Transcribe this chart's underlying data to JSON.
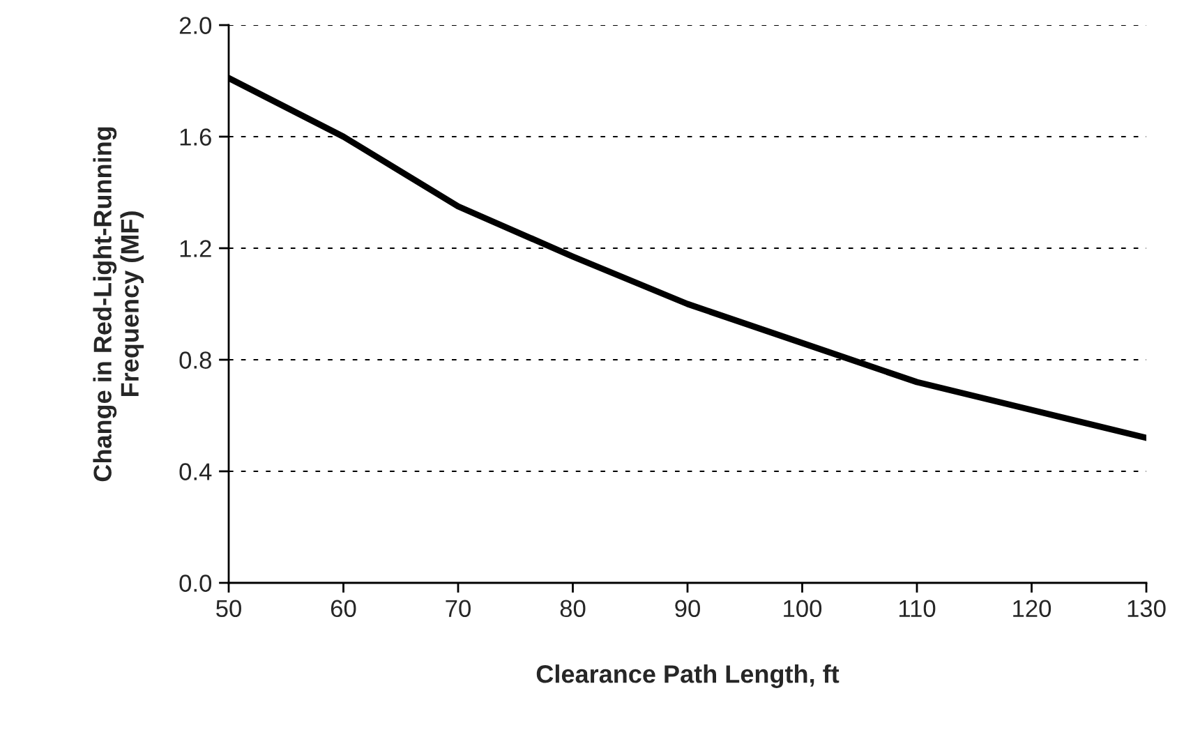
{
  "chart_data": {
    "type": "line",
    "xlabel": "Clearance Path Length, ft",
    "ylabel": "Change in Red-Light-Running\nFrequency (MF)",
    "x": [
      50,
      60,
      70,
      80,
      90,
      100,
      110,
      120,
      130
    ],
    "series": [
      {
        "color": "#000000",
        "values": [
          1.81,
          1.6,
          1.35,
          1.17,
          1.0,
          0.86,
          0.72,
          0.62,
          0.52
        ]
      }
    ],
    "xlim": [
      50,
      130
    ],
    "xticks": [
      50,
      60,
      70,
      80,
      90,
      100,
      110,
      120,
      130
    ],
    "ylim": [
      0,
      2.0
    ],
    "yticks": [
      {
        "value": 0,
        "label": "0.0"
      },
      {
        "value": 0.4,
        "label": "0.4"
      },
      {
        "value": 0.8,
        "label": "0.8"
      },
      {
        "value": 1.2,
        "label": "1.2"
      },
      {
        "value": 1.6,
        "label": "1.6"
      },
      {
        "value": 2.0,
        "label": "2.0"
      }
    ],
    "grid": "y",
    "line_style": "solid",
    "marker": "none"
  }
}
